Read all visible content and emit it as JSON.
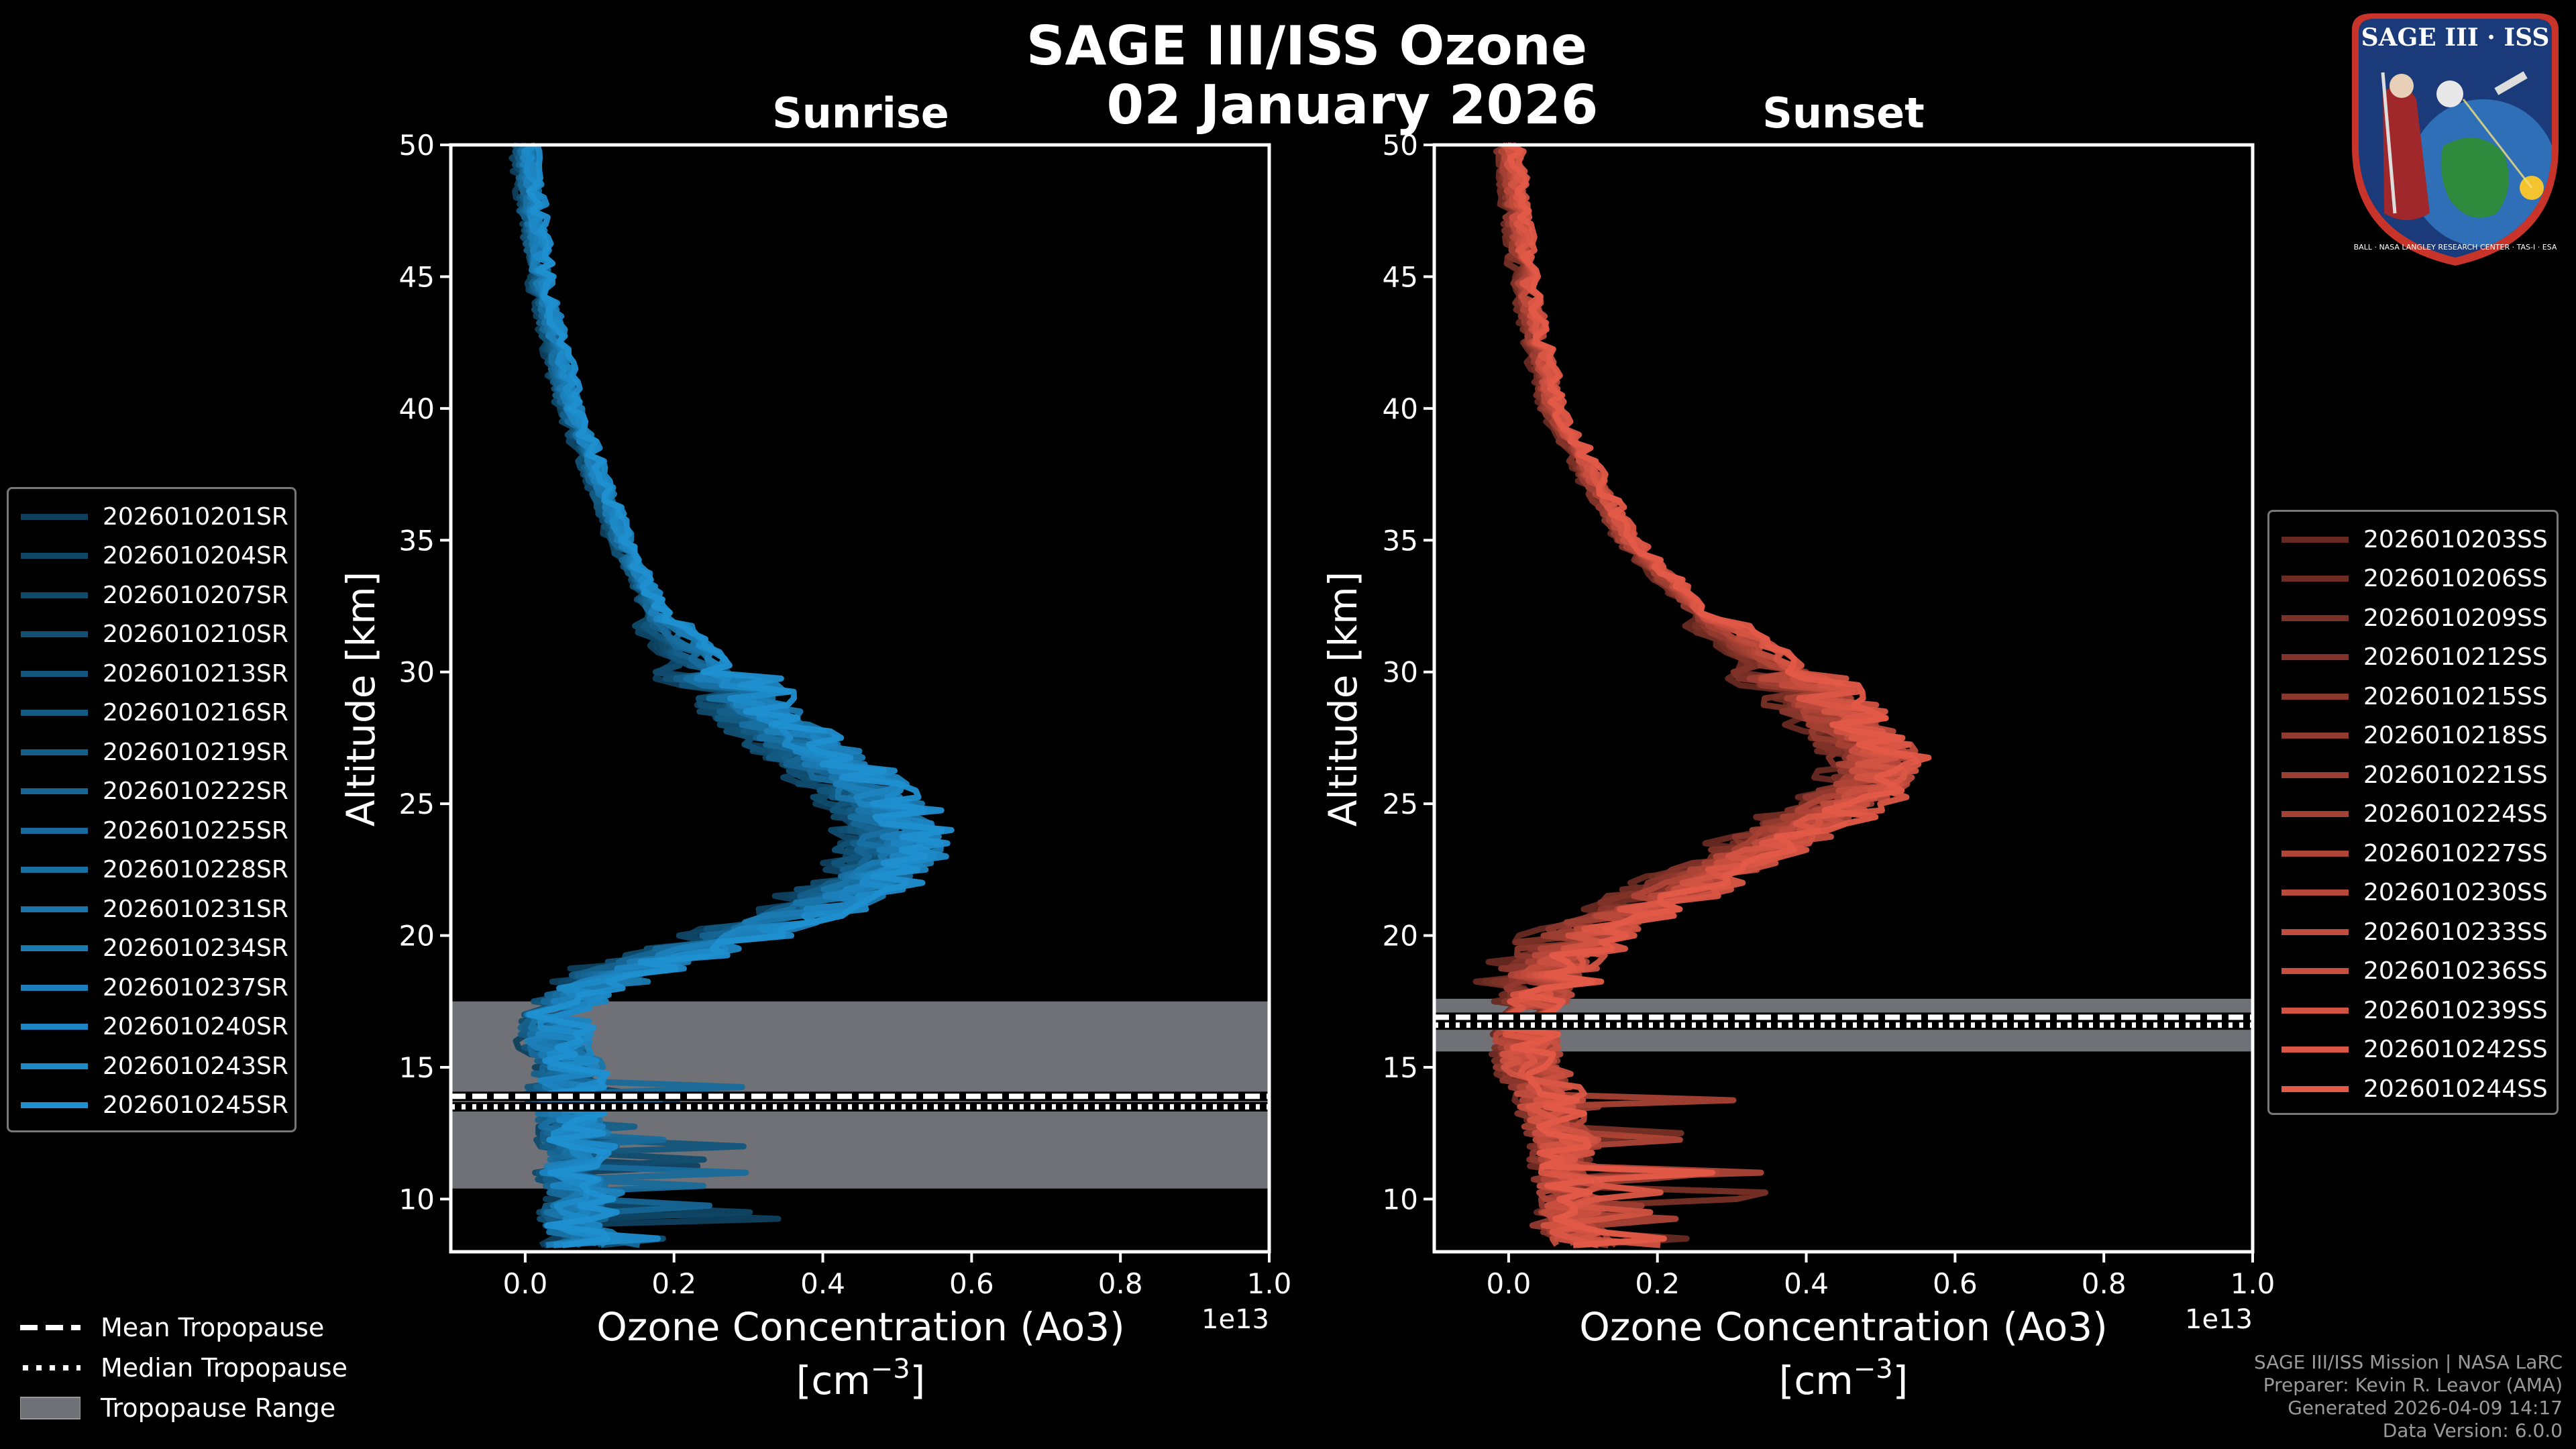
{
  "title": {
    "line1": "SAGE III/ISS Ozone",
    "line2": "02 January 2026"
  },
  "panels": [
    {
      "id": "sunrise",
      "title": "Sunrise"
    },
    {
      "id": "sunset",
      "title": "Sunset"
    }
  ],
  "axis": {
    "ylabel": "Altitude [km]",
    "xlabel_line1": "Ozone Concentration (Ao3)",
    "xlabel_line2_base": "[cm",
    "xlabel_line2_exp": "−3",
    "xlabel_line2_close": "]",
    "offset_text": "1e13",
    "xticks": [
      "0.0",
      "0.2",
      "0.4",
      "0.6",
      "0.8",
      "1.0"
    ],
    "yticks": [
      "10",
      "15",
      "20",
      "25",
      "30",
      "35",
      "40",
      "45",
      "50"
    ]
  },
  "colors": {
    "sunrise": "#1f8fd0",
    "sunset": "#e45a48",
    "band": "#6f7176",
    "background": "#000000",
    "frame": "#ffffff"
  },
  "legends": {
    "sunrise": [
      "2026010201SR",
      "2026010204SR",
      "2026010207SR",
      "2026010210SR",
      "2026010213SR",
      "2026010216SR",
      "2026010219SR",
      "2026010222SR",
      "2026010225SR",
      "2026010228SR",
      "2026010231SR",
      "2026010234SR",
      "2026010237SR",
      "2026010240SR",
      "2026010243SR",
      "2026010245SR"
    ],
    "sunset": [
      "2026010203SS",
      "2026010206SS",
      "2026010209SS",
      "2026010212SS",
      "2026010215SS",
      "2026010218SS",
      "2026010221SS",
      "2026010224SS",
      "2026010227SS",
      "2026010230SS",
      "2026010233SS",
      "2026010236SS",
      "2026010239SS",
      "2026010242SS",
      "2026010244SS"
    ],
    "tropopause": [
      "Mean Tropopause",
      "Median Tropopause",
      "Tropopause Range"
    ]
  },
  "logo": {
    "top": "SAGE III · ISS",
    "ring": "BALL · NASA LANGLEY RESEARCH CENTER · TAS-I · ESA"
  },
  "credits": [
    "SAGE III/ISS Mission | NASA LaRC",
    "Preparer: Kevin R. Leavor (AMA)",
    "Generated 2026-04-09 14:17",
    "Data Version: 6.0.0"
  ],
  "chart_data": [
    {
      "type": "line",
      "title": "Sunrise",
      "xlabel": "Ozone Concentration (Ao3) [cm−3]",
      "ylabel": "Altitude [km]",
      "x_scale": "1e13",
      "xlim": [
        -0.1,
        1.0
      ],
      "ylim": [
        8,
        50
      ],
      "tropopause": {
        "mean": 13.9,
        "median": 13.5,
        "range": [
          10.4,
          17.5
        ]
      },
      "mean_profile": {
        "alt": [
          50,
          45,
          40,
          35,
          32,
          30,
          28,
          26,
          25,
          24,
          23,
          22,
          21,
          20,
          19,
          18,
          17,
          16,
          15,
          14,
          13,
          12,
          11,
          10,
          9,
          8.5,
          8.2
        ],
        "o3": [
          0.0,
          0.02,
          0.06,
          0.13,
          0.18,
          0.25,
          0.33,
          0.43,
          0.47,
          0.49,
          0.49,
          0.46,
          0.38,
          0.28,
          0.17,
          0.08,
          0.04,
          0.04,
          0.06,
          0.05,
          0.06,
          0.07,
          0.06,
          0.08,
          0.06,
          0.08,
          0.06
        ]
      },
      "series_names": [
        "2026010201SR",
        "2026010204SR",
        "2026010207SR",
        "2026010210SR",
        "2026010213SR",
        "2026010216SR",
        "2026010219SR",
        "2026010222SR",
        "2026010225SR",
        "2026010228SR",
        "2026010231SR",
        "2026010234SR",
        "2026010237SR",
        "2026010240SR",
        "2026010243SR",
        "2026010245SR"
      ]
    },
    {
      "type": "line",
      "title": "Sunset",
      "xlabel": "Ozone Concentration (Ao3) [cm−3]",
      "ylabel": "Altitude [km]",
      "x_scale": "1e13",
      "xlim": [
        -0.1,
        1.0
      ],
      "ylim": [
        8,
        50
      ],
      "tropopause": {
        "mean": 16.9,
        "median": 16.6,
        "range": [
          15.6,
          17.6
        ]
      },
      "mean_profile": {
        "alt": [
          50,
          45,
          40,
          35,
          32,
          30,
          28,
          27,
          26,
          25,
          24,
          23,
          22,
          21,
          20,
          19,
          18,
          17,
          16,
          15,
          14,
          13,
          12,
          11,
          10,
          9,
          8.5
        ],
        "o3": [
          0.0,
          0.02,
          0.06,
          0.16,
          0.27,
          0.37,
          0.45,
          0.49,
          0.49,
          0.45,
          0.38,
          0.32,
          0.25,
          0.17,
          0.1,
          0.06,
          0.04,
          0.03,
          0.02,
          0.03,
          0.05,
          0.06,
          0.08,
          0.07,
          0.09,
          0.08,
          0.1
        ]
      },
      "series_names": [
        "2026010203SS",
        "2026010206SS",
        "2026010209SS",
        "2026010212SS",
        "2026010215SS",
        "2026010218SS",
        "2026010221SS",
        "2026010224SS",
        "2026010227SS",
        "2026010230SS",
        "2026010233SS",
        "2026010236SS",
        "2026010239SS",
        "2026010242SS",
        "2026010244SS"
      ]
    }
  ]
}
